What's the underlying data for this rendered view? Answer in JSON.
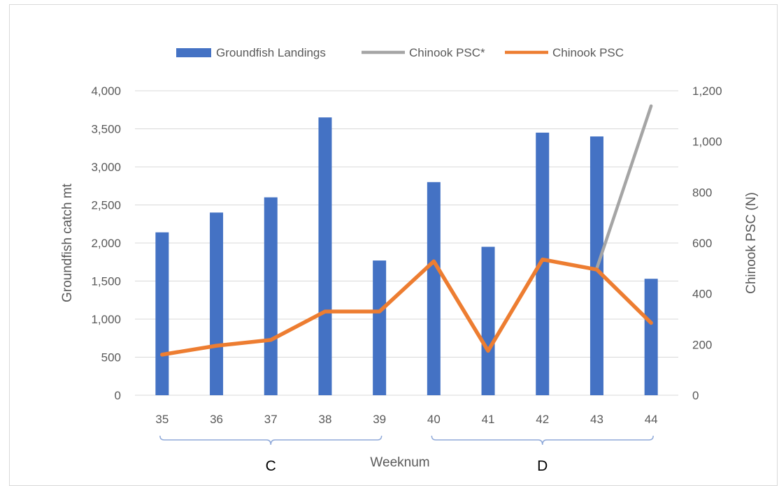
{
  "chart_data": {
    "type": "bar",
    "categories": [
      "35",
      "36",
      "37",
      "38",
      "39",
      "40",
      "41",
      "42",
      "43",
      "44"
    ],
    "series": [
      {
        "name": "Groundfish Landings",
        "kind": "bar",
        "axis": "left",
        "values": [
          2140,
          2400,
          2600,
          3650,
          1770,
          2800,
          1950,
          3450,
          3400,
          1530
        ]
      },
      {
        "name": "Chinook PSC*",
        "kind": "line",
        "axis": "right",
        "x": [
          "43",
          "44"
        ],
        "values": [
          500,
          1140
        ]
      },
      {
        "name": "Chinook PSC",
        "kind": "line",
        "axis": "right",
        "values": [
          160,
          195,
          218,
          330,
          330,
          528,
          175,
          535,
          495,
          285
        ]
      }
    ],
    "xlabel": "Weeknum",
    "ylabel": "Groundfish catch mt",
    "y2label": "Chinook PSC (N)",
    "ylim": [
      0,
      4000
    ],
    "y2lim": [
      0,
      1200
    ],
    "yticks": [
      "0",
      "500",
      "1,000",
      "1,500",
      "2,000",
      "2,500",
      "3,000",
      "3,500",
      "4,000"
    ],
    "y2ticks": [
      "0",
      "200",
      "400",
      "600",
      "800",
      "1,000",
      "1,200"
    ],
    "groups": [
      {
        "label": "C",
        "from": "35",
        "to": "39"
      },
      {
        "label": "D",
        "from": "40",
        "to": "44"
      }
    ],
    "legend_position": "top",
    "grid": true,
    "colors": {
      "bars": "#4472c4",
      "psc_star": "#a5a5a5",
      "psc": "#ed7d31",
      "grid": "#d9d9d9"
    }
  }
}
